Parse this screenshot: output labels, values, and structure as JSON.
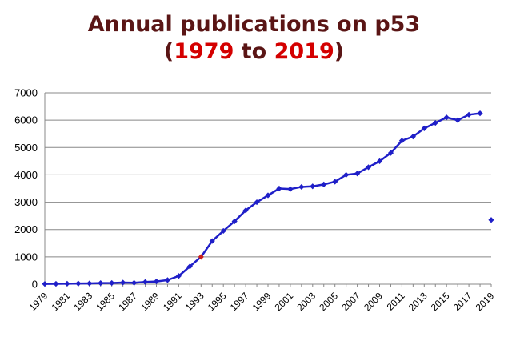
{
  "title": {
    "line1": "Annual publications on p53",
    "line2_open": "(",
    "line2_start": "1979",
    "line2_mid": " to ",
    "line2_end": "2019",
    "line2_close": ")"
  },
  "colors": {
    "title": "#5a1515",
    "highlight": "#d40000",
    "series": "#1f1fc8",
    "highlight_point": "#c81e1e"
  },
  "chart_data": {
    "type": "line",
    "title": "Annual publications on p53 (1979 to 2019)",
    "xlabel": "",
    "ylabel": "",
    "ylim": [
      0,
      7000
    ],
    "yticks": [
      0,
      1000,
      2000,
      3000,
      4000,
      5000,
      6000,
      7000
    ],
    "xlim": [
      1979,
      2019
    ],
    "xtick_labels": [
      "1979",
      "1981",
      "1983",
      "1985",
      "1987",
      "1989",
      "1991",
      "1993",
      "1995",
      "1997",
      "1999",
      "2001",
      "2003",
      "2005",
      "2007",
      "2009",
      "2011",
      "2013",
      "2015",
      "2017",
      "2019"
    ],
    "grid": "horizontal",
    "legend": "none",
    "series": [
      {
        "x": [
          1979,
          1980,
          1981,
          1982,
          1983,
          1984,
          1985,
          1986,
          1987,
          1988,
          1989,
          1990,
          1991,
          1992,
          1993,
          1994,
          1995,
          1996,
          1997,
          1998,
          1999,
          2000,
          2001,
          2002,
          2003,
          2004,
          2005,
          2006,
          2007,
          2008,
          2009,
          2010,
          2011,
          2012,
          2013,
          2014,
          2015,
          2016,
          2017,
          2018
        ],
        "values": [
          10,
          15,
          20,
          25,
          30,
          40,
          45,
          60,
          50,
          80,
          100,
          150,
          300,
          650,
          1000,
          1580,
          1950,
          2300,
          2700,
          3000,
          3250,
          3500,
          3480,
          3560,
          3580,
          3650,
          3750,
          4000,
          4050,
          4280,
          4500,
          4800,
          5250,
          5400,
          5700,
          5900,
          6100,
          6000,
          6200,
          6250
        ]
      },
      {
        "x": [
          2019
        ],
        "values": [
          2350
        ]
      }
    ],
    "highlight_point": {
      "x": 1993,
      "y": 1000
    }
  }
}
